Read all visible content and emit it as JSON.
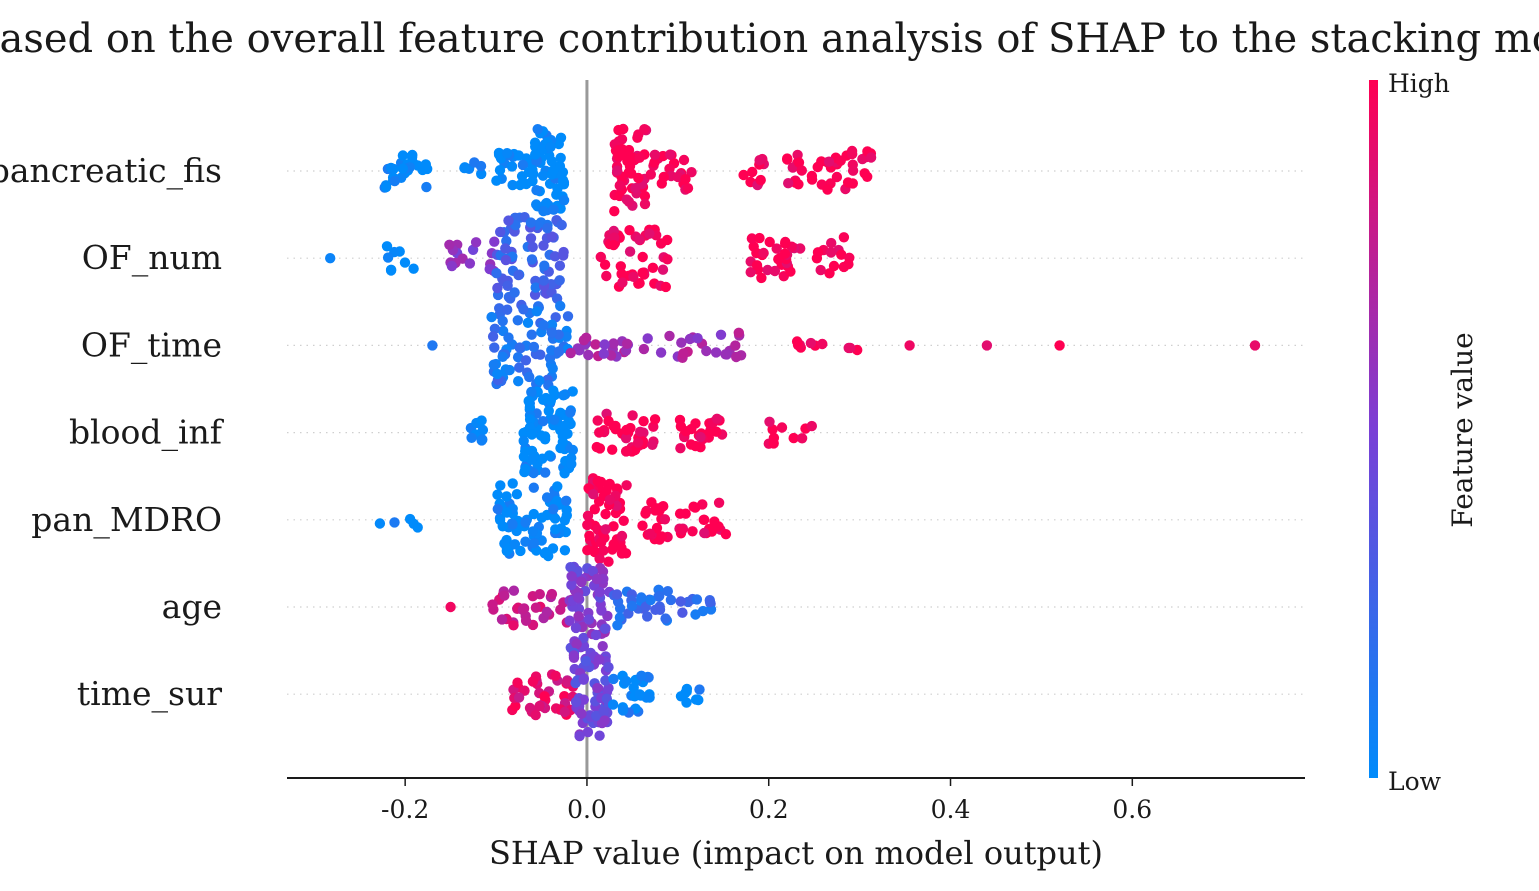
{
  "chart_data": {
    "type": "scatter",
    "subtype": "shap-beeswarm",
    "title": "Based on the overall feature contribution analysis of SHAP to the stacking model",
    "xlabel": "SHAP value (impact on model output)",
    "ylabel": "",
    "xlim": [
      -0.33,
      0.79
    ],
    "xticks": [
      {
        "value": -0.2,
        "label": "-0.2"
      },
      {
        "value": 0.0,
        "label": "0.0"
      },
      {
        "value": 0.2,
        "label": "0.2"
      },
      {
        "value": 0.4,
        "label": "0.4"
      },
      {
        "value": 0.6,
        "label": "0.6"
      }
    ],
    "zero_line": 0.0,
    "grid": false,
    "features": [
      "pancreatic_fis",
      "OF_num",
      "OF_time",
      "blood_inf",
      "pan_MDRO",
      "age",
      "time_sur"
    ],
    "colorbar": {
      "label": "Feature value",
      "high_label": "High",
      "low_label": "Low",
      "low_color": "#008bfb",
      "high_color": "#ff0052"
    },
    "series": [
      {
        "feature": "pancreatic_fis",
        "groups": [
          {
            "range": [
              -0.225,
              -0.175
            ],
            "count": 26,
            "value": 0.0,
            "spread": 0.45
          },
          {
            "range": [
              -0.135,
              -0.11
            ],
            "count": 6,
            "value": 0.0,
            "spread": 0.25
          },
          {
            "range": [
              -0.1,
              -0.06
            ],
            "count": 22,
            "value": 0.0,
            "spread": 0.45
          },
          {
            "range": [
              -0.06,
              -0.025
            ],
            "count": 60,
            "value": 0.0,
            "spread": 1.0
          },
          {
            "range": [
              0.03,
              0.065
            ],
            "count": 55,
            "value": 1.0,
            "spread": 1.0
          },
          {
            "range": [
              0.065,
              0.12
            ],
            "count": 22,
            "value": 1.0,
            "spread": 0.45
          },
          {
            "range": [
              0.17,
              0.195
            ],
            "count": 10,
            "value": 1.0,
            "spread": 0.35
          },
          {
            "range": [
              0.22,
              0.315
            ],
            "count": 42,
            "value": 1.0,
            "spread": 0.5
          }
        ]
      },
      {
        "feature": "OF_num",
        "groups": [
          {
            "range": [
              -0.285,
              -0.28
            ],
            "count": 1,
            "value": 0.0,
            "spread": 0.0
          },
          {
            "range": [
              -0.225,
              -0.19
            ],
            "count": 8,
            "value": 0.0,
            "spread": 0.3
          },
          {
            "range": [
              -0.155,
              -0.1
            ],
            "count": 16,
            "value": 0.55,
            "spread": 0.4
          },
          {
            "range": [
              -0.1,
              -0.025
            ],
            "count": 70,
            "value": 0.25,
            "spread": 1.0
          },
          {
            "range": [
              0.015,
              0.09
            ],
            "count": 45,
            "value": 1.0,
            "spread": 0.7
          },
          {
            "range": [
              0.18,
              0.29
            ],
            "count": 45,
            "value": 1.0,
            "spread": 0.5
          }
        ]
      },
      {
        "feature": "OF_time",
        "groups": [
          {
            "range": [
              -0.17,
              -0.17
            ],
            "count": 1,
            "value": 0.0,
            "spread": 0.0
          },
          {
            "range": [
              -0.105,
              -0.02
            ],
            "count": 75,
            "value": 0.15,
            "spread": 1.0
          },
          {
            "range": [
              -0.02,
              0.18
            ],
            "count": 45,
            "value": 0.65,
            "spread": 0.3
          },
          {
            "range": [
              0.23,
              0.3
            ],
            "count": 10,
            "value": 1.0,
            "spread": 0.15
          },
          {
            "range": [
              0.355,
              0.355
            ],
            "count": 1,
            "value": 1.0,
            "spread": 0.0
          },
          {
            "range": [
              0.44,
              0.44
            ],
            "count": 1,
            "value": 1.0,
            "spread": 0.0
          },
          {
            "range": [
              0.52,
              0.52
            ],
            "count": 1,
            "value": 1.0,
            "spread": 0.0
          },
          {
            "range": [
              0.735,
              0.735
            ],
            "count": 1,
            "value": 1.0,
            "spread": 0.0
          }
        ]
      },
      {
        "feature": "blood_inf",
        "groups": [
          {
            "range": [
              -0.135,
              -0.11
            ],
            "count": 8,
            "value": 0.0,
            "spread": 0.3
          },
          {
            "range": [
              -0.07,
              -0.015
            ],
            "count": 80,
            "value": 0.0,
            "spread": 1.0
          },
          {
            "range": [
              0.01,
              0.075
            ],
            "count": 35,
            "value": 1.0,
            "spread": 0.45
          },
          {
            "range": [
              0.1,
              0.15
            ],
            "count": 25,
            "value": 1.0,
            "spread": 0.4
          },
          {
            "range": [
              0.2,
              0.25
            ],
            "count": 10,
            "value": 1.0,
            "spread": 0.3
          }
        ]
      },
      {
        "feature": "pan_MDRO",
        "groups": [
          {
            "range": [
              -0.235,
              -0.185
            ],
            "count": 5,
            "value": 0.0,
            "spread": 0.2
          },
          {
            "range": [
              -0.1,
              -0.02
            ],
            "count": 70,
            "value": 0.0,
            "spread": 0.9
          },
          {
            "range": [
              0.0,
              0.045
            ],
            "count": 60,
            "value": 1.0,
            "spread": 1.0
          },
          {
            "range": [
              0.06,
              0.095
            ],
            "count": 20,
            "value": 1.0,
            "spread": 0.5
          },
          {
            "range": [
              0.1,
              0.155
            ],
            "count": 22,
            "value": 1.0,
            "spread": 0.45
          }
        ]
      },
      {
        "feature": "age",
        "groups": [
          {
            "range": [
              -0.15,
              -0.15
            ],
            "count": 1,
            "value": 1.0,
            "spread": 0.0
          },
          {
            "range": [
              -0.105,
              -0.02
            ],
            "count": 30,
            "value": 0.8,
            "spread": 0.45
          },
          {
            "range": [
              -0.02,
              0.025
            ],
            "count": 60,
            "value": 0.5,
            "spread": 1.0
          },
          {
            "range": [
              0.025,
              0.09
            ],
            "count": 30,
            "value": 0.2,
            "spread": 0.45
          },
          {
            "range": [
              0.09,
              0.15
            ],
            "count": 12,
            "value": 0.2,
            "spread": 0.2
          }
        ]
      },
      {
        "feature": "time_sur",
        "groups": [
          {
            "range": [
              -0.085,
              -0.015
            ],
            "count": 40,
            "value": 0.9,
            "spread": 0.5
          },
          {
            "range": [
              -0.015,
              0.025
            ],
            "count": 60,
            "value": 0.45,
            "spread": 1.0
          },
          {
            "range": [
              0.025,
              0.07
            ],
            "count": 25,
            "value": 0.05,
            "spread": 0.45
          },
          {
            "range": [
              0.095,
              0.125
            ],
            "count": 8,
            "value": 0.0,
            "spread": 0.2
          }
        ]
      }
    ]
  }
}
